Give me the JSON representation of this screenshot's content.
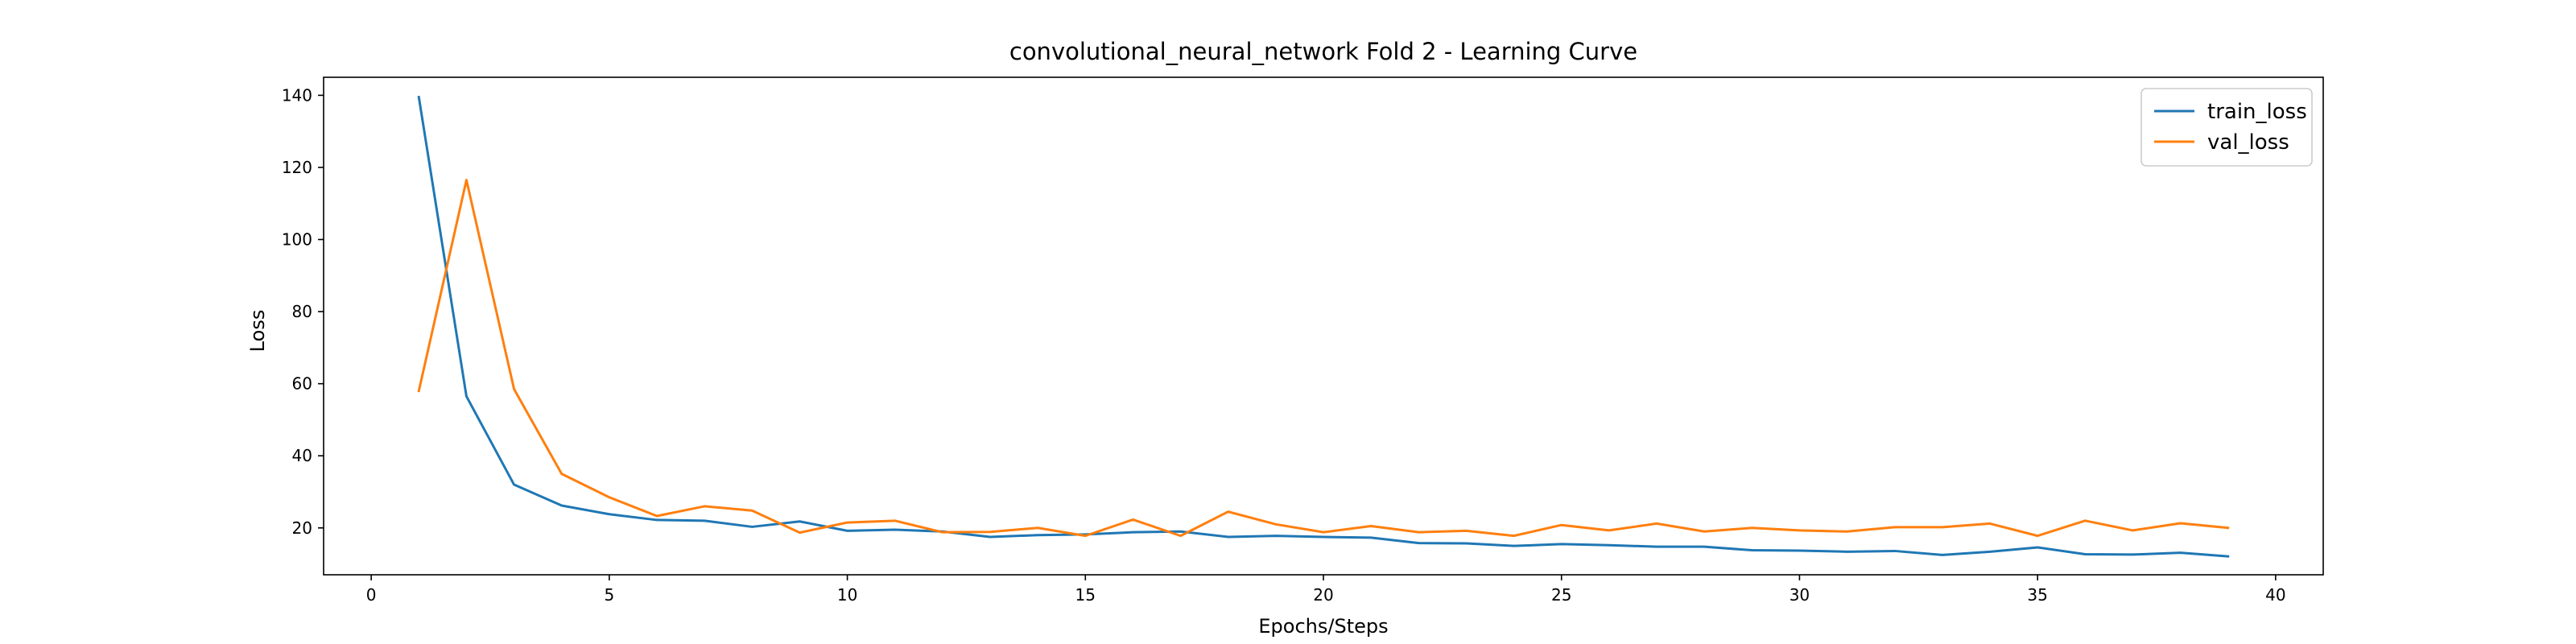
{
  "chart_data": {
    "type": "line",
    "title": "convolutional_neural_network Fold 2 - Learning Curve",
    "xlabel": "Epochs/Steps",
    "ylabel": "Loss",
    "xlim": [
      -1,
      41
    ],
    "ylim": [
      7,
      145
    ],
    "xticks": [
      0,
      5,
      10,
      15,
      20,
      25,
      30,
      35,
      40
    ],
    "yticks": [
      20,
      40,
      60,
      80,
      100,
      120,
      140
    ],
    "grid": false,
    "legend_position": "top-right",
    "x": [
      1,
      2,
      3,
      4,
      5,
      6,
      7,
      8,
      9,
      10,
      11,
      12,
      13,
      14,
      15,
      16,
      17,
      18,
      19,
      20,
      21,
      22,
      23,
      24,
      25,
      26,
      27,
      28,
      29,
      30,
      31,
      32,
      33,
      34,
      35,
      36,
      37,
      38,
      39
    ],
    "series": [
      {
        "name": "train_loss",
        "color": "#1f77b4",
        "values": [
          139.5,
          56.5,
          32.0,
          26.2,
          23.8,
          22.2,
          22.0,
          20.3,
          21.8,
          19.2,
          19.5,
          19.0,
          17.5,
          18.0,
          18.2,
          18.8,
          19.0,
          17.5,
          17.8,
          17.5,
          17.3,
          15.8,
          15.7,
          15.0,
          15.5,
          15.2,
          14.8,
          14.8,
          13.8,
          13.7,
          13.4,
          13.6,
          12.5,
          13.4,
          14.6,
          12.7,
          12.6,
          13.1,
          12.1
        ]
      },
      {
        "name": "val_loss",
        "color": "#ff7f0e",
        "values": [
          58.0,
          116.5,
          58.5,
          35.0,
          28.5,
          23.3,
          26.0,
          24.8,
          18.7,
          21.5,
          22.0,
          18.8,
          18.9,
          20.0,
          17.8,
          22.3,
          17.8,
          24.5,
          21.0,
          18.8,
          20.5,
          18.8,
          19.2,
          17.8,
          20.8,
          19.3,
          21.2,
          19.0,
          20.0,
          19.3,
          19.0,
          20.2,
          20.2,
          21.2,
          17.8,
          22.0,
          19.3,
          21.3,
          20.0
        ]
      }
    ]
  }
}
